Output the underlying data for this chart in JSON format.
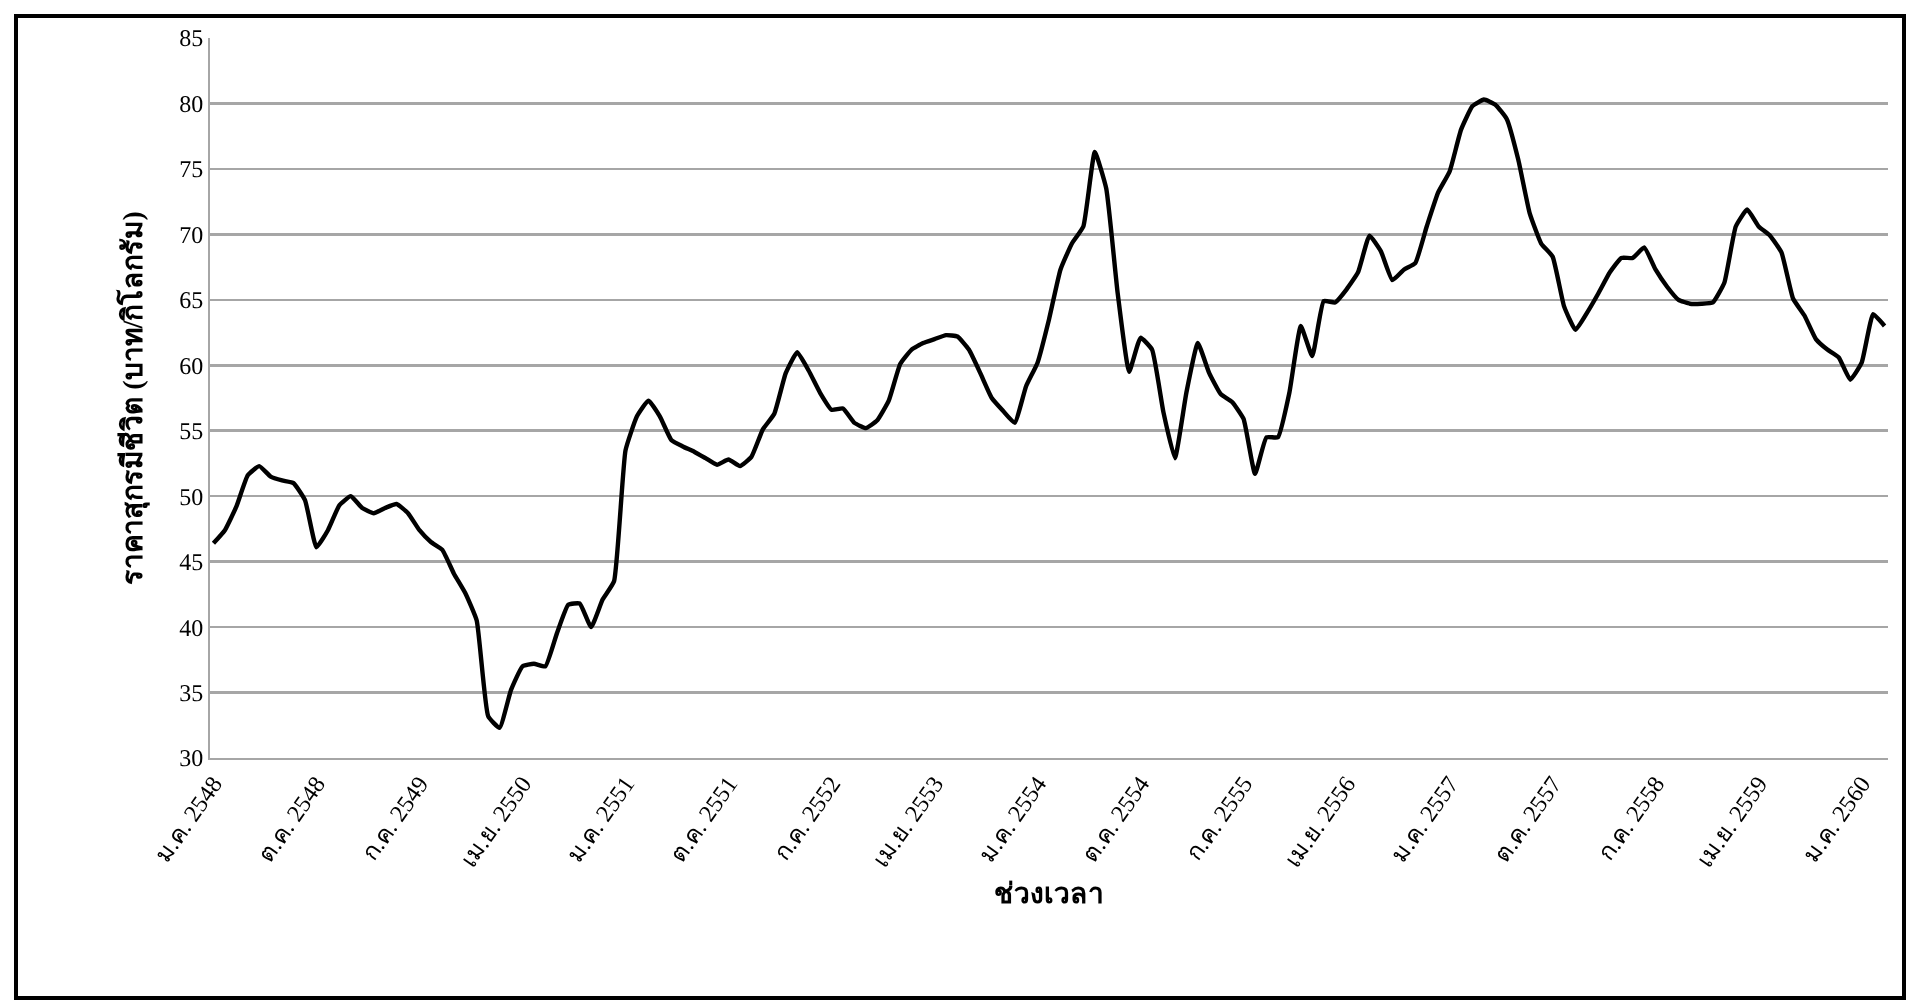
{
  "chart_data": {
    "type": "line",
    "xlabel": "ช่วงเวลา",
    "ylabel": "ราคาสุกรมีชีวิต (บาท/กิโลกรัม)",
    "categories": [
      "ม.ค. 2548",
      null,
      null,
      null,
      null,
      null,
      null,
      null,
      null,
      "ต.ค. 2548",
      null,
      null,
      null,
      null,
      null,
      null,
      null,
      null,
      "ก.ค. 2549",
      null,
      null,
      null,
      null,
      null,
      null,
      null,
      null,
      "เม.ย. 2550",
      null,
      null,
      null,
      null,
      null,
      null,
      null,
      null,
      "ม.ค. 2551",
      null,
      null,
      null,
      null,
      null,
      null,
      null,
      null,
      "ต.ค. 2551",
      null,
      null,
      null,
      null,
      null,
      null,
      null,
      null,
      "ก.ค. 2552",
      null,
      null,
      null,
      null,
      null,
      null,
      null,
      null,
      "เม.ย. 2553",
      null,
      null,
      null,
      null,
      null,
      null,
      null,
      null,
      "ม.ค. 2554",
      null,
      null,
      null,
      null,
      null,
      null,
      null,
      null,
      "ต.ค. 2554",
      null,
      null,
      null,
      null,
      null,
      null,
      null,
      null,
      "ก.ค. 2555",
      null,
      null,
      null,
      null,
      null,
      null,
      null,
      null,
      "เม.ย. 2556",
      null,
      null,
      null,
      null,
      null,
      null,
      null,
      null,
      "ม.ค. 2557",
      null,
      null,
      null,
      null,
      null,
      null,
      null,
      null,
      "ต.ค. 2557",
      null,
      null,
      null,
      null,
      null,
      null,
      null,
      null,
      "ก.ค. 2558",
      null,
      null,
      null,
      null,
      null,
      null,
      null,
      null,
      "เม.ย. 2559",
      null,
      null,
      null,
      null,
      null,
      null,
      null,
      null,
      "ม.ค. 2560",
      null,
      null
    ],
    "series": [
      {
        "color": "#000000",
        "values": [
          46.4,
          47.4,
          49.2,
          51.6,
          52.3,
          51.5,
          51.2,
          51.0,
          49.7,
          46.1,
          47.4,
          49.3,
          50.0,
          49.1,
          48.7,
          49.1,
          49.4,
          48.7,
          47.4,
          46.5,
          45.9,
          44.1,
          42.6,
          40.5,
          33.2,
          32.3,
          35.2,
          37.0,
          37.2,
          37.0,
          39.5,
          41.7,
          41.8,
          40.0,
          42.1,
          43.5,
          53.5,
          56.1,
          57.3,
          56.1,
          54.3,
          53.8,
          53.4,
          52.9,
          52.4,
          52.8,
          52.3,
          53.0,
          55.1,
          56.3,
          59.4,
          61.0,
          59.6,
          57.9,
          56.6,
          56.7,
          55.6,
          55.2,
          55.8,
          57.3,
          60.1,
          61.2,
          61.7,
          62.0,
          62.3,
          62.2,
          61.2,
          59.4,
          57.5,
          56.5,
          55.6,
          58.4,
          60.2,
          63.5,
          67.3,
          69.3,
          70.6,
          76.3,
          73.5,
          65.5,
          59.5,
          62.1,
          61.2,
          56.4,
          52.9,
          57.9,
          61.7,
          59.4,
          57.8,
          57.2,
          55.9,
          51.7,
          54.5,
          54.5,
          57.9,
          63.0,
          60.7,
          64.9,
          64.8,
          65.8,
          67.1,
          69.9,
          68.7,
          66.5,
          67.3,
          67.8,
          70.6,
          73.2,
          74.8,
          78.0,
          79.8,
          80.3,
          79.9,
          78.8,
          75.7,
          71.6,
          69.3,
          68.3,
          64.5,
          62.7,
          64.0,
          65.5,
          67.1,
          68.2,
          68.2,
          69.0,
          67.3,
          66.0,
          65.0,
          64.7,
          64.7,
          64.8,
          66.3,
          70.6,
          71.9,
          70.6,
          69.9,
          68.6,
          65.1,
          63.8,
          62.0,
          61.2,
          60.6,
          58.9,
          60.2,
          63.9,
          63.0
        ]
      }
    ],
    "ylim": [
      30,
      85
    ],
    "yticks": [
      30,
      35,
      40,
      45,
      50,
      55,
      60,
      65,
      70,
      75,
      80,
      85
    ],
    "grid": "y",
    "marker": "none",
    "line_style": "solid"
  }
}
